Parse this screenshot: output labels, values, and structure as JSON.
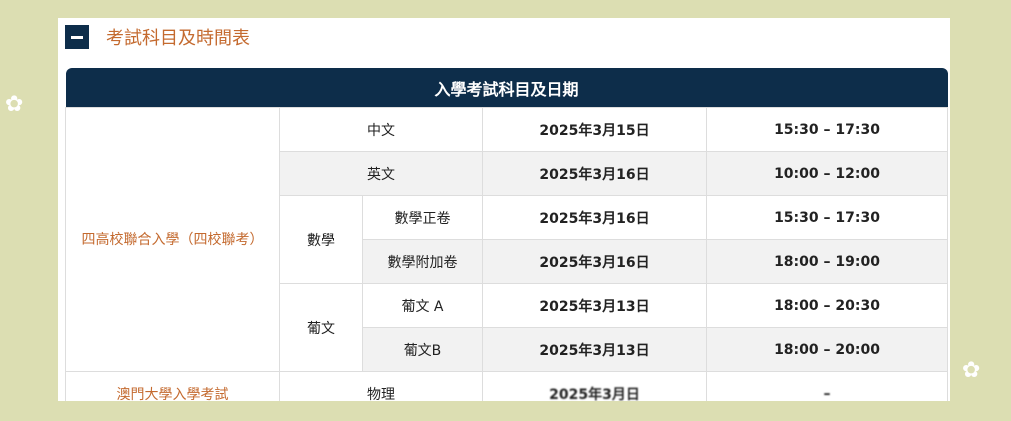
{
  "section": {
    "title": "考試科目及時間表",
    "toggle_icon": "minus-icon"
  },
  "table": {
    "header": "入學考試科目及日期",
    "group1": "四高校聯合入學（四校聯考）",
    "group2": "澳門大學入學考試",
    "math": "數學",
    "port": "葡文",
    "rows": [
      {
        "subject": "中文",
        "date": "2025年3月15日",
        "time": "15:30 – 17:30"
      },
      {
        "subject": "英文",
        "date": "2025年3月16日",
        "time": "10:00 – 12:00"
      },
      {
        "subject": "數學正卷",
        "date": "2025年3月16日",
        "time": "15:30 – 17:30"
      },
      {
        "subject": "數學附加卷",
        "date": "2025年3月16日",
        "time": "18:00 – 19:00"
      },
      {
        "subject": "葡文 A",
        "date": "2025年3月13日",
        "time": "18:00 – 20:30"
      },
      {
        "subject": "葡文B",
        "date": "2025年3月13日",
        "time": "18:00 – 20:00"
      },
      {
        "subject": "物理",
        "date": "2025年3月日",
        "time": "– "
      }
    ]
  },
  "colors": {
    "navy": "#0d2d4a",
    "accent": "#c46a2f",
    "background": "#dcdeb2"
  }
}
